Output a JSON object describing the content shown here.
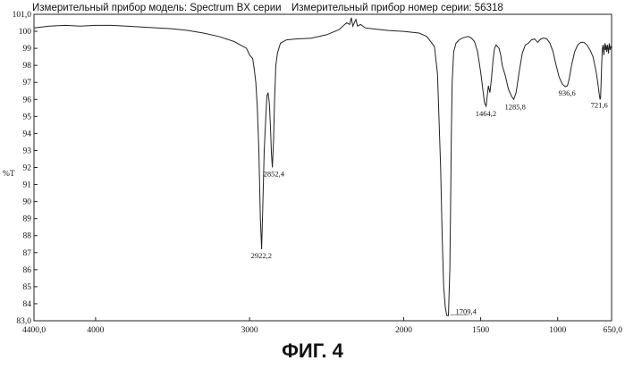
{
  "header": {
    "model_text": "Измерительный прибор модель: Spectrum BX серии",
    "serial_text": "Измерительный прибор номер серии: 56318"
  },
  "caption": "ФИГ. 4",
  "chart_data": {
    "type": "line",
    "title": "",
    "xlabel": "",
    "ylabel": "%T",
    "xlim": [
      4400.0,
      650.0
    ],
    "ylim": [
      83.0,
      101.0
    ],
    "x_tick_labels": [
      "4400,0",
      "4000",
      "3000",
      "2000",
      "1500",
      "1000",
      "650,0"
    ],
    "x_tick_values": [
      4400,
      4000,
      3000,
      2000,
      1500,
      1000,
      650
    ],
    "y_tick_labels": [
      "83,0",
      "84",
      "85",
      "86",
      "87",
      "88",
      "89",
      "90",
      "91",
      "92",
      "93",
      "94",
      "95",
      "96",
      "97",
      "98",
      "99",
      "100",
      "101,0"
    ],
    "y_tick_values": [
      83,
      84,
      85,
      86,
      87,
      88,
      89,
      90,
      91,
      92,
      93,
      94,
      95,
      96,
      97,
      98,
      99,
      100,
      101
    ],
    "series": [
      {
        "color": "#222222",
        "points": [
          [
            4400,
            100.2
          ],
          [
            4300,
            100.3
          ],
          [
            4200,
            100.35
          ],
          [
            4100,
            100.3
          ],
          [
            4000,
            100.35
          ],
          [
            3900,
            100.35
          ],
          [
            3800,
            100.3
          ],
          [
            3700,
            100.25
          ],
          [
            3600,
            100.2
          ],
          [
            3500,
            100.15
          ],
          [
            3400,
            100.05
          ],
          [
            3300,
            99.9
          ],
          [
            3200,
            99.7
          ],
          [
            3100,
            99.4
          ],
          [
            3060,
            99.2
          ],
          [
            3020,
            99.0
          ],
          [
            3000,
            98.6
          ],
          [
            2980,
            98.4
          ],
          [
            2970,
            97.8
          ],
          [
            2960,
            97.0
          ],
          [
            2950,
            95.5
          ],
          [
            2940,
            93.0
          ],
          [
            2930,
            89.0
          ],
          [
            2922.2,
            87.2
          ],
          [
            2915,
            89.5
          ],
          [
            2905,
            93.0
          ],
          [
            2895,
            95.0
          ],
          [
            2888,
            96.2
          ],
          [
            2880,
            96.4
          ],
          [
            2872,
            95.8
          ],
          [
            2865,
            94.5
          ],
          [
            2858,
            92.8
          ],
          [
            2852.4,
            92.0
          ],
          [
            2845,
            93.5
          ],
          [
            2838,
            96.0
          ],
          [
            2830,
            98.0
          ],
          [
            2820,
            98.7
          ],
          [
            2800,
            99.3
          ],
          [
            2760,
            99.5
          ],
          [
            2700,
            99.55
          ],
          [
            2600,
            99.6
          ],
          [
            2500,
            99.8
          ],
          [
            2420,
            100.1
          ],
          [
            2370,
            100.5
          ],
          [
            2350,
            100.4
          ],
          [
            2340,
            100.8
          ],
          [
            2330,
            100.3
          ],
          [
            2310,
            100.7
          ],
          [
            2300,
            100.3
          ],
          [
            2280,
            100.4
          ],
          [
            2250,
            100.2
          ],
          [
            2200,
            100.15
          ],
          [
            2100,
            100.05
          ],
          [
            2000,
            100.0
          ],
          [
            1900,
            99.9
          ],
          [
            1850,
            99.7
          ],
          [
            1800,
            99.1
          ],
          [
            1780,
            97.5
          ],
          [
            1760,
            92.0
          ],
          [
            1750,
            88.0
          ],
          [
            1740,
            85.0
          ],
          [
            1730,
            83.8
          ],
          [
            1720,
            83.3
          ],
          [
            1709.4,
            83.3
          ],
          [
            1700,
            86.0
          ],
          [
            1695,
            90.0
          ],
          [
            1690,
            94.0
          ],
          [
            1685,
            97.0
          ],
          [
            1675,
            98.8
          ],
          [
            1660,
            99.3
          ],
          [
            1640,
            99.5
          ],
          [
            1620,
            99.6
          ],
          [
            1600,
            99.65
          ],
          [
            1580,
            99.7
          ],
          [
            1560,
            99.6
          ],
          [
            1540,
            99.4
          ],
          [
            1520,
            98.8
          ],
          [
            1500,
            97.6
          ],
          [
            1485,
            96.5
          ],
          [
            1475,
            95.8
          ],
          [
            1464.2,
            95.6
          ],
          [
            1460,
            96.0
          ],
          [
            1450,
            96.8
          ],
          [
            1440,
            96.4
          ],
          [
            1430,
            97.2
          ],
          [
            1420,
            98.3
          ],
          [
            1410,
            99.0
          ],
          [
            1400,
            99.2
          ],
          [
            1380,
            99.0
          ],
          [
            1370,
            98.6
          ],
          [
            1360,
            98.0
          ],
          [
            1340,
            97.4
          ],
          [
            1320,
            96.6
          ],
          [
            1300,
            96.2
          ],
          [
            1285.8,
            96.0
          ],
          [
            1270,
            96.4
          ],
          [
            1250,
            97.6
          ],
          [
            1230,
            98.7
          ],
          [
            1210,
            99.2
          ],
          [
            1190,
            99.3
          ],
          [
            1170,
            99.5
          ],
          [
            1150,
            99.55
          ],
          [
            1130,
            99.35
          ],
          [
            1110,
            99.55
          ],
          [
            1090,
            99.6
          ],
          [
            1070,
            99.55
          ],
          [
            1050,
            99.3
          ],
          [
            1030,
            98.8
          ],
          [
            1010,
            98.0
          ],
          [
            990,
            97.3
          ],
          [
            970,
            96.9
          ],
          [
            950,
            96.75
          ],
          [
            936.6,
            96.8
          ],
          [
            925,
            97.2
          ],
          [
            910,
            98.0
          ],
          [
            890,
            98.8
          ],
          [
            870,
            99.2
          ],
          [
            850,
            99.35
          ],
          [
            830,
            99.35
          ],
          [
            810,
            99.2
          ],
          [
            790,
            98.9
          ],
          [
            770,
            98.5
          ],
          [
            750,
            97.6
          ],
          [
            740,
            97.0
          ],
          [
            730,
            96.3
          ],
          [
            725,
            96.0
          ],
          [
            721.6,
            96.1
          ],
          [
            718,
            97.0
          ],
          [
            714,
            98.2
          ],
          [
            710,
            99.0
          ],
          [
            705,
            99.2
          ],
          [
            700,
            98.6
          ],
          [
            697,
            99.0
          ],
          [
            693,
            99.3
          ],
          [
            690,
            98.9
          ],
          [
            686,
            99.2
          ],
          [
            682,
            98.8
          ],
          [
            676,
            99.2
          ],
          [
            670,
            98.7
          ],
          [
            665,
            99.3
          ],
          [
            660,
            98.9
          ],
          [
            655,
            99.1
          ],
          [
            650,
            99.0
          ]
        ]
      }
    ],
    "annotations": [
      {
        "text": "2922,2",
        "x": 2922.2,
        "y": 87.2
      },
      {
        "text": "2852,4",
        "x": 2852.4,
        "y": 92.0
      },
      {
        "text": "1709,4",
        "x": 1709.4,
        "y": 83.3
      },
      {
        "text": "1464,2",
        "x": 1464.2,
        "y": 95.6
      },
      {
        "text": "1285,8",
        "x": 1285.8,
        "y": 96.0
      },
      {
        "text": "936,6",
        "x": 936.6,
        "y": 96.8
      },
      {
        "text": "721,6",
        "x": 721.6,
        "y": 96.1
      }
    ]
  }
}
